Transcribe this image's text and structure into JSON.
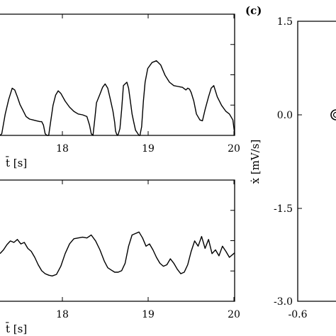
{
  "chart_data": [
    {
      "id": "top-left",
      "type": "line",
      "xlabel": "t̄ [s]",
      "x_ticks": [
        "18",
        "19",
        "20"
      ],
      "xlim": [
        17.3,
        20.0
      ],
      "ylim": [
        0.0,
        1.0
      ],
      "series": [
        {
          "x": [
            17.3,
            17.32,
            17.36,
            17.4,
            17.44,
            17.47,
            17.5,
            17.53,
            17.56,
            17.6,
            17.64,
            17.68,
            17.72,
            17.76,
            17.78,
            17.8,
            17.82,
            17.84,
            17.86,
            17.88,
            17.91,
            17.94,
            17.97,
            18.0,
            18.05,
            18.1,
            18.15,
            18.2,
            18.25,
            18.3,
            18.33,
            18.35,
            18.37,
            18.39,
            18.41,
            18.45,
            18.48,
            18.51,
            18.54,
            18.57,
            18.6,
            18.62,
            18.63,
            18.64,
            18.65,
            18.66,
            18.68,
            18.7,
            18.72,
            18.74,
            18.76,
            18.78,
            18.8,
            18.82,
            18.84,
            18.86,
            18.88,
            18.9,
            18.91,
            18.93,
            18.95,
            18.97,
            19.0,
            19.05,
            19.1,
            19.15,
            19.2,
            19.25,
            19.3,
            19.35,
            19.4,
            19.44,
            19.46,
            19.48,
            19.5,
            19.53,
            19.56,
            19.6,
            19.63,
            19.66,
            19.7,
            19.73,
            19.76,
            19.8,
            19.85,
            19.9,
            19.94,
            19.98,
            20.0
          ],
          "y": [
            0.0,
            0.02,
            0.25,
            0.42,
            0.55,
            0.53,
            0.45,
            0.36,
            0.3,
            0.22,
            0.19,
            0.18,
            0.17,
            0.16,
            0.16,
            0.12,
            0.02,
            0.0,
            0.0,
            0.14,
            0.35,
            0.47,
            0.52,
            0.49,
            0.4,
            0.33,
            0.28,
            0.25,
            0.24,
            0.22,
            0.12,
            0.02,
            0.0,
            0.18,
            0.38,
            0.48,
            0.56,
            0.6,
            0.55,
            0.42,
            0.28,
            0.15,
            0.05,
            0.02,
            0.0,
            0.01,
            0.08,
            0.3,
            0.58,
            0.6,
            0.62,
            0.55,
            0.4,
            0.25,
            0.15,
            0.06,
            0.03,
            0.0,
            0.0,
            0.1,
            0.4,
            0.62,
            0.78,
            0.85,
            0.87,
            0.82,
            0.7,
            0.62,
            0.58,
            0.57,
            0.56,
            0.53,
            0.55,
            0.54,
            0.5,
            0.4,
            0.25,
            0.18,
            0.17,
            0.3,
            0.45,
            0.55,
            0.58,
            0.45,
            0.35,
            0.28,
            0.25,
            0.18,
            0.02
          ]
        }
      ]
    },
    {
      "id": "bottom-left",
      "type": "line",
      "xlabel": "t̄ [s]",
      "x_ticks": [
        "18",
        "19",
        "20"
      ],
      "xlim": [
        17.3,
        20.0
      ],
      "ylim": [
        0.0,
        1.0
      ],
      "series": [
        {
          "x": [
            17.3,
            17.34,
            17.38,
            17.42,
            17.46,
            17.5,
            17.54,
            17.58,
            17.62,
            17.66,
            17.7,
            17.74,
            17.78,
            17.82,
            17.86,
            17.9,
            17.95,
            18.0,
            18.05,
            18.1,
            18.15,
            18.2,
            18.25,
            18.3,
            18.35,
            18.4,
            18.45,
            18.5,
            18.54,
            18.58,
            18.62,
            18.66,
            18.7,
            18.74,
            18.78,
            18.82,
            18.86,
            18.9,
            18.94,
            18.98,
            19.02,
            19.06,
            19.1,
            19.14,
            19.18,
            19.22,
            19.26,
            19.3,
            19.34,
            19.38,
            19.42,
            19.46,
            19.5,
            19.54,
            19.58,
            19.62,
            19.66,
            19.7,
            19.74,
            19.78,
            19.82,
            19.86,
            19.9,
            19.94,
            19.98,
            20.0
          ],
          "y": [
            0.45,
            0.5,
            0.57,
            0.62,
            0.6,
            0.64,
            0.58,
            0.6,
            0.52,
            0.48,
            0.4,
            0.3,
            0.22,
            0.18,
            0.16,
            0.15,
            0.17,
            0.28,
            0.45,
            0.58,
            0.65,
            0.66,
            0.67,
            0.66,
            0.7,
            0.62,
            0.5,
            0.35,
            0.26,
            0.23,
            0.2,
            0.2,
            0.22,
            0.32,
            0.55,
            0.7,
            0.72,
            0.74,
            0.66,
            0.55,
            0.58,
            0.5,
            0.4,
            0.32,
            0.28,
            0.3,
            0.38,
            0.32,
            0.24,
            0.18,
            0.2,
            0.3,
            0.48,
            0.62,
            0.55,
            0.68,
            0.52,
            0.64,
            0.45,
            0.5,
            0.42,
            0.55,
            0.48,
            0.4,
            0.44,
            0.46
          ]
        }
      ]
    },
    {
      "id": "panel-c",
      "panel_label": "(c)",
      "type": "scatter",
      "ylabel": "ẋ [mV/s]",
      "y_ticks": [
        "1.5",
        "0.0",
        "-1.5",
        "-3.0"
      ],
      "x_ticks": [
        "-0.6"
      ],
      "ylim": [
        -3.0,
        1.5
      ],
      "marker_at_y": 0.0
    }
  ]
}
